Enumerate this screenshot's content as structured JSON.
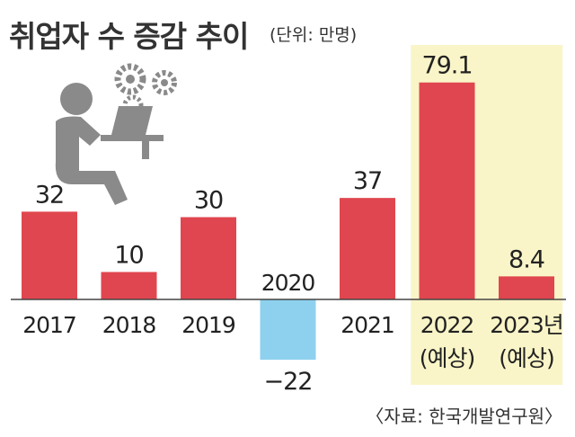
{
  "title": "취업자 수 증감 추이",
  "unit": "(단위: 만명)",
  "source": "〈자료: 한국개발연구원〉",
  "colors": {
    "positive": "#e0464f",
    "negative": "#8ed1ef",
    "highlight": "#faf5c8",
    "axis": "#444444",
    "text": "#222222",
    "icon": "#8a8a8a"
  },
  "chart_data": {
    "type": "bar",
    "title": "취업자 수 증감 추이",
    "unit": "(단위: 만명)",
    "categories": [
      "2017",
      "2018",
      "2019",
      "2020",
      "2021",
      "2022",
      "2023년"
    ],
    "category_notes": [
      "",
      "",
      "",
      "",
      "",
      "(예상)",
      "(예상)"
    ],
    "values": [
      32,
      10,
      30,
      -22,
      37,
      79.1,
      8.4
    ],
    "value_labels": [
      "32",
      "10",
      "30",
      "−22",
      "37",
      "79.1",
      "8.4"
    ],
    "highlighted": [
      false,
      false,
      false,
      false,
      false,
      true,
      true
    ],
    "ylim": [
      -22,
      80
    ],
    "grid": false,
    "legend": "none"
  }
}
